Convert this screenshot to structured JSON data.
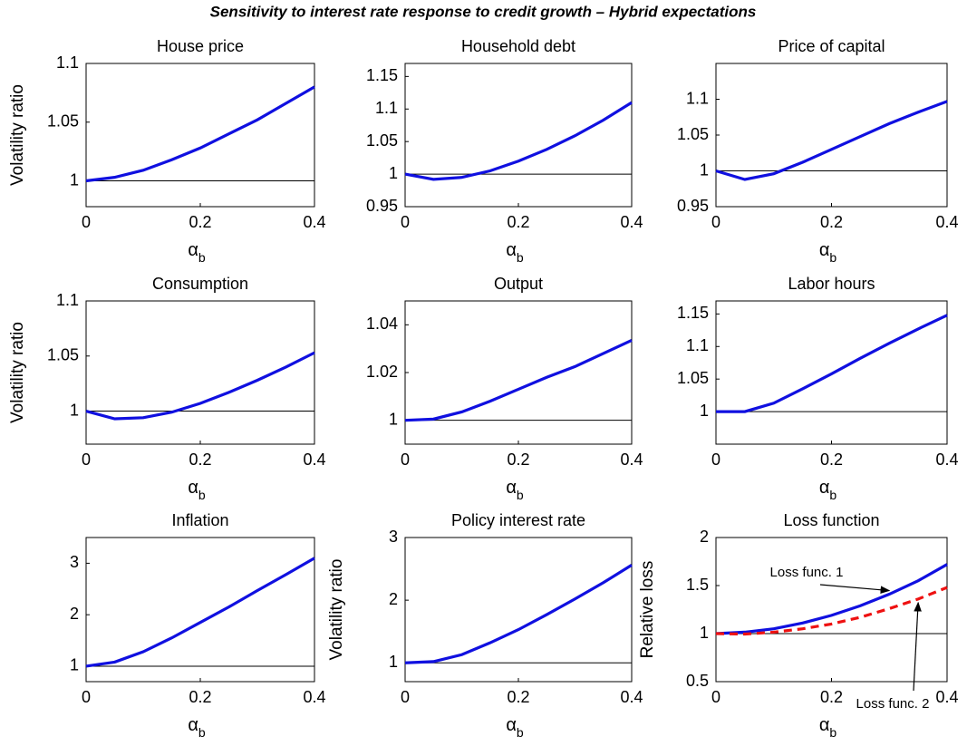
{
  "title": "Sensitivity to interest rate response to credit growth – Hybrid expectations",
  "chart_data": [
    {
      "type": "line",
      "title": "House price",
      "ylabel": "Volatility ratio",
      "xlabel": "α",
      "xlabel_subscript": "b",
      "x": [
        0,
        0.05,
        0.1,
        0.15,
        0.2,
        0.25,
        0.3,
        0.35,
        0.4
      ],
      "values": [
        1,
        1.003,
        1.009,
        1.018,
        1.028,
        1.04,
        1.052,
        1.066,
        1.08
      ],
      "color": "#1010e0",
      "xlim": [
        0,
        0.4
      ],
      "xticks": [
        0,
        0.2,
        0.4
      ],
      "ylim": [
        0.978,
        1.1
      ],
      "yticks": [
        1,
        1.05,
        1.1
      ],
      "reference_line": 1
    },
    {
      "type": "line",
      "title": "Household debt",
      "xlabel": "α",
      "xlabel_subscript": "b",
      "x": [
        0,
        0.05,
        0.1,
        0.15,
        0.2,
        0.25,
        0.3,
        0.35,
        0.4
      ],
      "values": [
        1,
        0.992,
        0.995,
        1.005,
        1.02,
        1.038,
        1.059,
        1.083,
        1.11
      ],
      "color": "#1010e0",
      "xlim": [
        0,
        0.4
      ],
      "xticks": [
        0,
        0.2,
        0.4
      ],
      "ylim": [
        0.95,
        1.17
      ],
      "yticks": [
        0.95,
        1,
        1.05,
        1.1,
        1.15
      ],
      "reference_line": 1
    },
    {
      "type": "line",
      "title": "Price of capital",
      "xlabel": "α",
      "xlabel_subscript": "b",
      "x": [
        0,
        0.05,
        0.1,
        0.15,
        0.2,
        0.25,
        0.3,
        0.35,
        0.4
      ],
      "values": [
        1,
        0.988,
        0.996,
        1.012,
        1.03,
        1.048,
        1.066,
        1.082,
        1.097
      ],
      "color": "#1010e0",
      "xlim": [
        0,
        0.4
      ],
      "xticks": [
        0,
        0.2,
        0.4
      ],
      "ylim": [
        0.95,
        1.15
      ],
      "yticks": [
        0.95,
        1,
        1.05,
        1.1
      ],
      "reference_line": 1
    },
    {
      "type": "line",
      "title": "Consumption",
      "ylabel": "Volatility ratio",
      "xlabel": "α",
      "xlabel_subscript": "b",
      "x": [
        0,
        0.05,
        0.1,
        0.15,
        0.2,
        0.25,
        0.3,
        0.35,
        0.4
      ],
      "values": [
        1,
        0.993,
        0.994,
        0.999,
        1.007,
        1.017,
        1.028,
        1.04,
        1.053
      ],
      "color": "#1010e0",
      "xlim": [
        0,
        0.4
      ],
      "xticks": [
        0,
        0.2,
        0.4
      ],
      "ylim": [
        0.97,
        1.1
      ],
      "yticks": [
        1,
        1.05,
        1.1
      ],
      "reference_line": 1
    },
    {
      "type": "line",
      "title": "Output",
      "xlabel": "α",
      "xlabel_subscript": "b",
      "x": [
        0,
        0.05,
        0.1,
        0.15,
        0.2,
        0.25,
        0.3,
        0.35,
        0.4
      ],
      "values": [
        1,
        1.0005,
        1.0035,
        1.008,
        1.013,
        1.018,
        1.0225,
        1.028,
        1.0335
      ],
      "color": "#1010e0",
      "xlim": [
        0,
        0.4
      ],
      "xticks": [
        0,
        0.2,
        0.4
      ],
      "ylim": [
        0.99,
        1.05
      ],
      "yticks": [
        1,
        1.02,
        1.04
      ],
      "reference_line": 1
    },
    {
      "type": "line",
      "title": "Labor hours",
      "xlabel": "α",
      "xlabel_subscript": "b",
      "x": [
        0,
        0.05,
        0.1,
        0.15,
        0.2,
        0.25,
        0.3,
        0.35,
        0.4
      ],
      "values": [
        1,
        1,
        1.013,
        1.035,
        1.058,
        1.082,
        1.105,
        1.127,
        1.148
      ],
      "color": "#1010e0",
      "xlim": [
        0,
        0.4
      ],
      "xticks": [
        0,
        0.2,
        0.4
      ],
      "ylim": [
        0.95,
        1.17
      ],
      "yticks": [
        1,
        1.05,
        1.1,
        1.15
      ],
      "reference_line": 1
    },
    {
      "type": "line",
      "title": "Inflation",
      "xlabel": "α",
      "xlabel_subscript": "b",
      "x": [
        0,
        0.05,
        0.1,
        0.15,
        0.2,
        0.25,
        0.3,
        0.35,
        0.4
      ],
      "values": [
        1,
        1.08,
        1.28,
        1.55,
        1.85,
        2.15,
        2.47,
        2.78,
        3.1
      ],
      "color": "#1010e0",
      "xlim": [
        0,
        0.4
      ],
      "xticks": [
        0,
        0.2,
        0.4
      ],
      "ylim": [
        0.7,
        3.5
      ],
      "yticks": [
        1,
        2,
        3
      ],
      "reference_line": 1
    },
    {
      "type": "line",
      "title": "Policy interest rate",
      "ylabel": "Volatility ratio",
      "xlabel": "α",
      "xlabel_subscript": "b",
      "x": [
        0,
        0.05,
        0.1,
        0.15,
        0.2,
        0.25,
        0.3,
        0.35,
        0.4
      ],
      "values": [
        1,
        1.02,
        1.13,
        1.32,
        1.53,
        1.77,
        2.02,
        2.28,
        2.56
      ],
      "color": "#1010e0",
      "xlim": [
        0,
        0.4
      ],
      "xticks": [
        0,
        0.2,
        0.4
      ],
      "ylim": [
        0.7,
        3
      ],
      "yticks": [
        1,
        2,
        3
      ],
      "reference_line": 1
    },
    {
      "type": "line",
      "title": "Loss function",
      "ylabel": "Relative loss",
      "xlabel": "α",
      "xlabel_subscript": "b",
      "x": [
        0,
        0.05,
        0.1,
        0.15,
        0.2,
        0.25,
        0.3,
        0.35,
        0.4
      ],
      "series": [
        {
          "name": "Loss func. 1",
          "color": "#1010e0",
          "dash": "solid",
          "values": [
            1,
            1.015,
            1.05,
            1.11,
            1.19,
            1.29,
            1.41,
            1.55,
            1.72
          ]
        },
        {
          "name": "Loss func. 2",
          "color": "#ee1111",
          "dash": "dashed",
          "values": [
            1,
            0.995,
            1.015,
            1.05,
            1.1,
            1.17,
            1.26,
            1.36,
            1.48
          ]
        }
      ],
      "xlim": [
        0,
        0.4
      ],
      "xticks": [
        0,
        0.2,
        0.4
      ],
      "ylim": [
        0.5,
        2
      ],
      "yticks": [
        0.5,
        1,
        1.5,
        2
      ],
      "reference_line": 1
    }
  ]
}
